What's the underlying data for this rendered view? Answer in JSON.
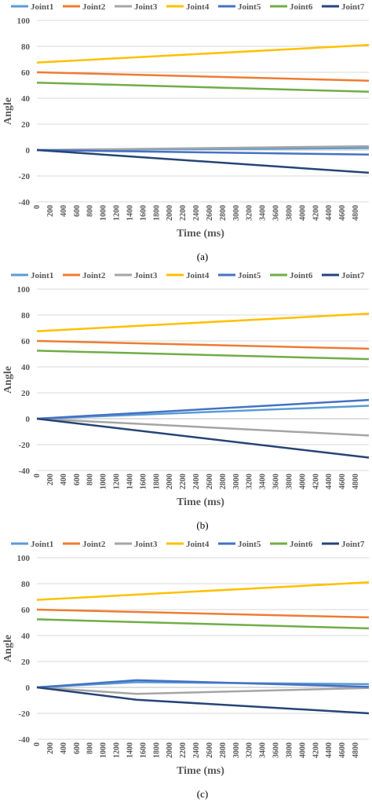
{
  "chart_data": [
    {
      "type": "line",
      "caption": "(a)",
      "xlabel": "Time (ms)",
      "ylabel": "Angle",
      "ylim": [
        -40,
        100
      ],
      "yticks": [
        -40,
        -20,
        0,
        20,
        40,
        60,
        80,
        100
      ],
      "xlim": [
        0,
        5000
      ],
      "xticks": [
        0,
        200,
        400,
        600,
        800,
        1000,
        1200,
        1400,
        1600,
        1800,
        2000,
        2200,
        2400,
        2600,
        2800,
        3000,
        3200,
        3400,
        3600,
        3800,
        4000,
        4200,
        4400,
        4600,
        4800
      ],
      "grid": true,
      "legend_position": "top",
      "series": [
        {
          "name": "Joint1",
          "color": "#5b9bd5",
          "points": [
            [
              0,
              0
            ],
            [
              5000,
              1.5
            ]
          ]
        },
        {
          "name": "Joint2",
          "color": "#ed7d31",
          "points": [
            [
              0,
              60
            ],
            [
              5000,
              53.5
            ]
          ]
        },
        {
          "name": "Joint3",
          "color": "#a5a5a5",
          "points": [
            [
              0,
              0
            ],
            [
              5000,
              3
            ]
          ]
        },
        {
          "name": "Joint4",
          "color": "#ffc000",
          "points": [
            [
              0,
              67.5
            ],
            [
              5000,
              81
            ]
          ]
        },
        {
          "name": "Joint5",
          "color": "#4472c4",
          "points": [
            [
              0,
              0
            ],
            [
              5000,
              -3.5
            ]
          ]
        },
        {
          "name": "Joint6",
          "color": "#70ad47",
          "points": [
            [
              0,
              52
            ],
            [
              5000,
              45
            ]
          ]
        },
        {
          "name": "Joint7",
          "color": "#264478",
          "points": [
            [
              0,
              0
            ],
            [
              5000,
              -17.5
            ]
          ]
        }
      ]
    },
    {
      "type": "line",
      "caption": "(b)",
      "xlabel": "Time (ms)",
      "ylabel": "Angle",
      "ylim": [
        -40,
        100
      ],
      "yticks": [
        -40,
        -20,
        0,
        20,
        40,
        60,
        80,
        100
      ],
      "xlim": [
        0,
        5000
      ],
      "xticks": [
        0,
        200,
        400,
        600,
        800,
        1000,
        1200,
        1400,
        1600,
        1800,
        2000,
        2200,
        2400,
        2600,
        2800,
        3000,
        3200,
        3400,
        3600,
        3800,
        4000,
        4200,
        4400,
        4600,
        4800
      ],
      "grid": true,
      "legend_position": "top",
      "series": [
        {
          "name": "Joint1",
          "color": "#5b9bd5",
          "points": [
            [
              0,
              0
            ],
            [
              5000,
              10
            ]
          ]
        },
        {
          "name": "Joint2",
          "color": "#ed7d31",
          "points": [
            [
              0,
              60
            ],
            [
              5000,
              54
            ]
          ]
        },
        {
          "name": "Joint3",
          "color": "#a5a5a5",
          "points": [
            [
              0,
              0
            ],
            [
              5000,
              -13
            ]
          ]
        },
        {
          "name": "Joint4",
          "color": "#ffc000",
          "points": [
            [
              0,
              67.5
            ],
            [
              5000,
              81
            ]
          ]
        },
        {
          "name": "Joint5",
          "color": "#4472c4",
          "points": [
            [
              0,
              0
            ],
            [
              5000,
              14.5
            ]
          ]
        },
        {
          "name": "Joint6",
          "color": "#70ad47",
          "points": [
            [
              0,
              52.5
            ],
            [
              5000,
              46
            ]
          ]
        },
        {
          "name": "Joint7",
          "color": "#264478",
          "points": [
            [
              0,
              0
            ],
            [
              5000,
              -30
            ]
          ]
        }
      ]
    },
    {
      "type": "line",
      "caption": "(c)",
      "xlabel": "Time (ms)",
      "ylabel": "Angle",
      "ylim": [
        -40,
        100
      ],
      "yticks": [
        -40,
        -20,
        0,
        20,
        40,
        60,
        80,
        100
      ],
      "xlim": [
        0,
        5000
      ],
      "xticks": [
        0,
        200,
        400,
        600,
        800,
        1000,
        1200,
        1400,
        1600,
        1800,
        2000,
        2200,
        2400,
        2600,
        2800,
        3000,
        3200,
        3400,
        3600,
        3800,
        4000,
        4200,
        4400,
        4600,
        4800
      ],
      "grid": true,
      "legend_position": "top",
      "series": [
        {
          "name": "Joint1",
          "color": "#5b9bd5",
          "points": [
            [
              0,
              0
            ],
            [
              1500,
              4
            ],
            [
              5000,
              2.5
            ]
          ]
        },
        {
          "name": "Joint2",
          "color": "#ed7d31",
          "points": [
            [
              0,
              60
            ],
            [
              5000,
              54
            ]
          ]
        },
        {
          "name": "Joint3",
          "color": "#a5a5a5",
          "points": [
            [
              0,
              0
            ],
            [
              1500,
              -5
            ],
            [
              5000,
              -0.5
            ]
          ]
        },
        {
          "name": "Joint4",
          "color": "#ffc000",
          "points": [
            [
              0,
              67.5
            ],
            [
              5000,
              81
            ]
          ]
        },
        {
          "name": "Joint5",
          "color": "#4472c4",
          "points": [
            [
              0,
              0
            ],
            [
              1500,
              5.5
            ],
            [
              5000,
              0.5
            ]
          ]
        },
        {
          "name": "Joint6",
          "color": "#70ad47",
          "points": [
            [
              0,
              52.5
            ],
            [
              5000,
              45.5
            ]
          ]
        },
        {
          "name": "Joint7",
          "color": "#264478",
          "points": [
            [
              0,
              0
            ],
            [
              1500,
              -9.5
            ],
            [
              5000,
              -20
            ]
          ]
        }
      ]
    }
  ]
}
